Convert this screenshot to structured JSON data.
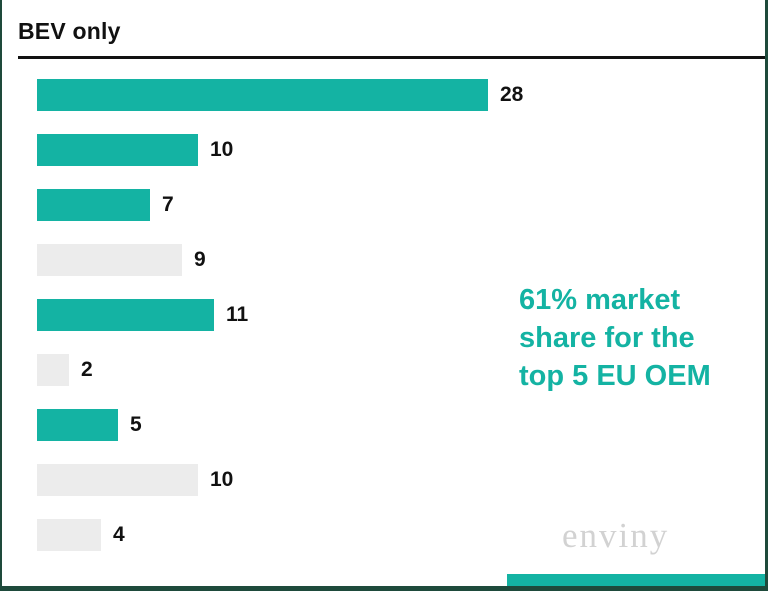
{
  "header": {
    "title": "BEV only"
  },
  "chart_data": {
    "type": "bar",
    "orientation": "horizontal",
    "title": "BEV only",
    "categories": [
      "",
      "",
      "",
      "",
      "",
      "",
      "",
      "",
      ""
    ],
    "values": [
      28,
      10,
      7,
      9,
      11,
      2,
      5,
      10,
      4
    ],
    "highlighted": [
      true,
      true,
      true,
      false,
      true,
      false,
      true,
      false,
      false
    ],
    "xlim": [
      0,
      30
    ],
    "grid": false,
    "legend": "none",
    "data_labels": true
  },
  "annotation": {
    "text": "61% market\nshare for the\ntop 5 EU OEM"
  },
  "watermark": {
    "text": "enviny"
  },
  "colors": {
    "bar_highlight": "#14b3a3",
    "bar_muted": "#ececec",
    "annotation_text": "#14b3a3",
    "border_dark_green": "#1e4a3b",
    "title_text": "#111111"
  }
}
